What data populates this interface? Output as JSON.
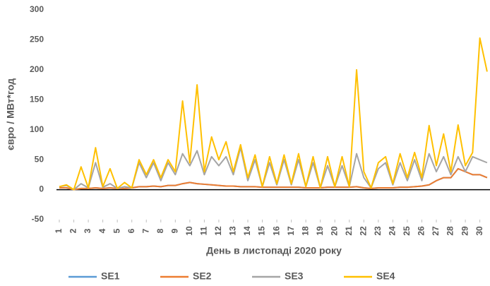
{
  "chart_data": {
    "type": "line",
    "y_label": "євро / МВт*год",
    "x_label": "День в листопаді 2020 року",
    "x": [
      1,
      1.5,
      2,
      2.5,
      3,
      3.5,
      4,
      4.5,
      5,
      5.5,
      6,
      6.5,
      7,
      7.5,
      8,
      8.5,
      9,
      9.5,
      10,
      10.5,
      11,
      11.5,
      12,
      12.5,
      13,
      13.5,
      14,
      14.5,
      15,
      15.5,
      16,
      16.5,
      17,
      17.5,
      18,
      18.5,
      19,
      19.5,
      20,
      20.5,
      21,
      21.5,
      22,
      22.5,
      23,
      23.5,
      24,
      24.5,
      25,
      25.5,
      26,
      26.5,
      27,
      27.5,
      28,
      28.5,
      29,
      29.5,
      30,
      30.5
    ],
    "series": [
      {
        "name": "SE1",
        "color": "#5b9bd5",
        "values": [
          3,
          3,
          0,
          2,
          2,
          3,
          2,
          3,
          2,
          2,
          3,
          5,
          5,
          6,
          5,
          7,
          7,
          10,
          12,
          10,
          9,
          8,
          7,
          6,
          6,
          5,
          5,
          5,
          4,
          4,
          4,
          4,
          4,
          4,
          3,
          3,
          3,
          4,
          4,
          4,
          4,
          5,
          3,
          2,
          3,
          3,
          3,
          4,
          4,
          5,
          6,
          8,
          15,
          20,
          20,
          35,
          30,
          25,
          25,
          20
        ]
      },
      {
        "name": "SE2",
        "color": "#ed7d31",
        "values": [
          3,
          3,
          0,
          2,
          2,
          3,
          2,
          3,
          2,
          2,
          3,
          5,
          5,
          6,
          5,
          7,
          7,
          10,
          12,
          10,
          9,
          8,
          7,
          6,
          6,
          5,
          5,
          5,
          4,
          4,
          4,
          4,
          4,
          4,
          3,
          3,
          3,
          4,
          4,
          4,
          4,
          5,
          3,
          2,
          3,
          3,
          3,
          4,
          4,
          5,
          6,
          8,
          15,
          20,
          20,
          35,
          30,
          25,
          25,
          20
        ]
      },
      {
        "name": "SE3",
        "color": "#a5a5a5",
        "values": [
          5,
          7,
          0,
          10,
          3,
          45,
          4,
          10,
          2,
          5,
          3,
          45,
          20,
          45,
          15,
          45,
          25,
          60,
          40,
          65,
          25,
          55,
          40,
          55,
          25,
          70,
          15,
          50,
          5,
          45,
          8,
          50,
          8,
          50,
          5,
          45,
          3,
          40,
          5,
          40,
          5,
          60,
          20,
          3,
          35,
          45,
          8,
          45,
          15,
          50,
          15,
          60,
          30,
          55,
          25,
          55,
          30,
          55,
          50,
          45
        ]
      },
      {
        "name": "SE4",
        "color": "#ffc000",
        "values": [
          5,
          8,
          0,
          38,
          3,
          70,
          5,
          35,
          2,
          12,
          3,
          50,
          25,
          50,
          20,
          50,
          30,
          148,
          45,
          175,
          30,
          88,
          50,
          80,
          30,
          75,
          20,
          58,
          5,
          55,
          10,
          58,
          10,
          60,
          5,
          55,
          3,
          55,
          5,
          55,
          5,
          200,
          30,
          3,
          45,
          55,
          10,
          60,
          20,
          62,
          20,
          107,
          40,
          93,
          30,
          108,
          40,
          62,
          253,
          197
        ]
      }
    ],
    "xlim": [
      1,
      30.7
    ],
    "xticks": [
      1,
      2,
      3,
      4,
      5,
      6,
      7,
      8,
      9,
      10,
      11,
      12,
      13,
      14,
      15,
      16,
      17,
      18,
      19,
      20,
      21,
      22,
      23,
      24,
      25,
      26,
      27,
      28,
      29,
      30
    ],
    "ylim": [
      -50,
      300
    ],
    "yticks": [
      -50,
      0,
      50,
      100,
      150,
      200,
      250,
      300
    ],
    "legend": "bottom"
  }
}
